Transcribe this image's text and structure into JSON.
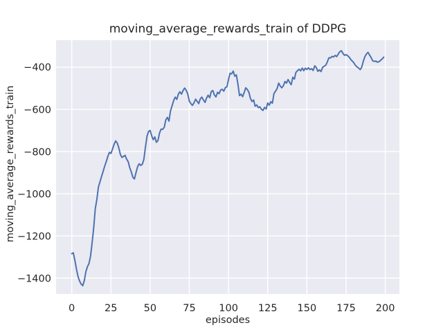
{
  "title": "moving_average_rewards_train of DDPG",
  "colors": {
    "line": "#4c72b0",
    "plot_background": "#eaeaf2",
    "figure_background": "#ffffff",
    "gridline": "#ffffff",
    "text": "#262626"
  },
  "chart_data": {
    "type": "line",
    "title": "moving_average_rewards_train of DDPG",
    "xlabel": "episodes",
    "ylabel": "moving_average_rewards_train",
    "x_ticks": [
      0,
      25,
      50,
      75,
      100,
      125,
      150,
      175,
      200
    ],
    "y_ticks": [
      -400,
      -600,
      -800,
      -1000,
      -1200,
      -1400
    ],
    "xlim": [
      -10,
      209
    ],
    "ylim": [
      -1475,
      -272
    ],
    "grid": true,
    "legend": null,
    "series": [
      {
        "name": "DDPG",
        "x_start": 0,
        "x_step": 1,
        "values": [
          -1284,
          -1280,
          -1316,
          -1356,
          -1392,
          -1414,
          -1428,
          -1436,
          -1412,
          -1370,
          -1346,
          -1330,
          -1296,
          -1232,
          -1160,
          -1072,
          -1028,
          -968,
          -944,
          -918,
          -895,
          -870,
          -848,
          -824,
          -804,
          -809,
          -789,
          -766,
          -750,
          -759,
          -782,
          -814,
          -828,
          -823,
          -818,
          -836,
          -848,
          -876,
          -897,
          -922,
          -930,
          -900,
          -872,
          -858,
          -866,
          -860,
          -838,
          -780,
          -727,
          -705,
          -700,
          -726,
          -744,
          -731,
          -756,
          -748,
          -712,
          -694,
          -695,
          -685,
          -650,
          -638,
          -656,
          -608,
          -583,
          -558,
          -542,
          -553,
          -528,
          -517,
          -528,
          -511,
          -499,
          -510,
          -527,
          -561,
          -573,
          -581,
          -569,
          -552,
          -562,
          -573,
          -550,
          -542,
          -556,
          -567,
          -547,
          -533,
          -545,
          -516,
          -511,
          -532,
          -541,
          -519,
          -526,
          -508,
          -505,
          -514,
          -497,
          -493,
          -459,
          -429,
          -432,
          -419,
          -443,
          -437,
          -480,
          -535,
          -528,
          -540,
          -520,
          -498,
          -506,
          -519,
          -548,
          -563,
          -556,
          -585,
          -579,
          -592,
          -588,
          -600,
          -605,
          -591,
          -598,
          -570,
          -580,
          -564,
          -571,
          -525,
          -514,
          -502,
          -476,
          -490,
          -498,
          -488,
          -468,
          -476,
          -459,
          -473,
          -483,
          -448,
          -457,
          -425,
          -417,
          -410,
          -418,
          -404,
          -417,
          -405,
          -411,
          -403,
          -412,
          -407,
          -416,
          -394,
          -402,
          -420,
          -413,
          -421,
          -401,
          -396,
          -391,
          -376,
          -356,
          -357,
          -349,
          -352,
          -344,
          -350,
          -338,
          -327,
          -322,
          -335,
          -344,
          -341,
          -346,
          -353,
          -364,
          -372,
          -380,
          -392,
          -399,
          -404,
          -412,
          -400,
          -372,
          -350,
          -338,
          -330,
          -343,
          -355,
          -370,
          -373,
          -371,
          -377,
          -374,
          -368,
          -361,
          -353
        ]
      }
    ]
  }
}
